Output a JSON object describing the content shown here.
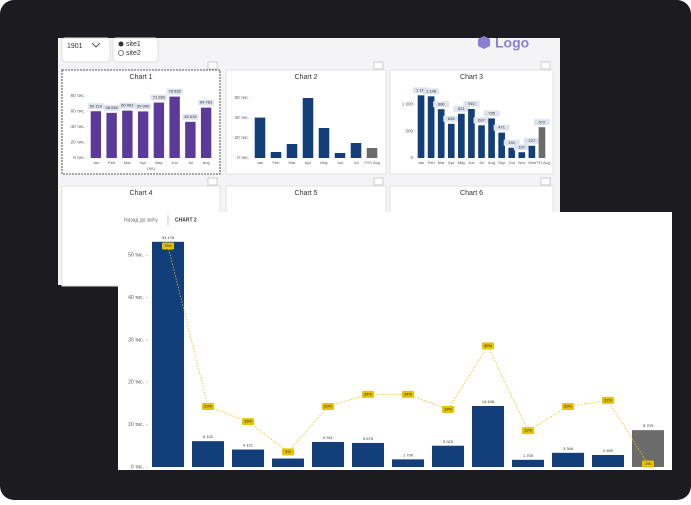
{
  "filters": {
    "year": "1901",
    "options": [
      "site1",
      "site2"
    ]
  },
  "logo": "Logo",
  "cards": [
    {
      "type": "bar",
      "title": "Chart 1",
      "group": "1901",
      "color": "#5b3a9a",
      "categories": [
        "Jan",
        "Feb",
        "Mar",
        "Apr",
        "May",
        "Jun",
        "Jul",
        "Aug"
      ],
      "values": [
        60119,
        58048,
        60902,
        59900,
        71282,
        78935,
        46519,
        64781
      ],
      "value_labels": [
        "60 119",
        "58 048",
        "60 902",
        "59 900",
        "71 282",
        "78 935",
        "46 519",
        "64 781"
      ],
      "ylim": [
        0,
        90000
      ],
      "yticks": [
        {
          "value": 0,
          "label": "0 тис."
        },
        {
          "value": 20000,
          "label": "20 тис."
        },
        {
          "value": 40000,
          "label": "40 тис."
        },
        {
          "value": 60000,
          "label": "60 тис."
        },
        {
          "value": 80000,
          "label": "80 тис."
        }
      ]
    },
    {
      "type": "bar",
      "title": "Chart 2",
      "color": "#123e7a",
      "avg_color": "#6b6b6b",
      "categories": [
        "Jan",
        "Feb",
        "Mar",
        "Apr",
        "May",
        "Jun",
        "Jul",
        "YTD Avg"
      ],
      "values": [
        40429,
        6000,
        14000,
        60000,
        30000,
        5000,
        15000,
        10000
      ],
      "ylim": [
        0,
        70000
      ],
      "yticks": [
        {
          "value": 0,
          "label": "0 тис."
        },
        {
          "value": 20000,
          "label": "20 тис."
        },
        {
          "value": 40000,
          "label": "40 тис."
        },
        {
          "value": 60000,
          "label": "60 тис."
        }
      ]
    },
    {
      "type": "bar",
      "title": "Chart 3",
      "color": "#123e7a",
      "avg_color": "#6b6b6b",
      "categories": [
        "Jan",
        "Feb",
        "Mar",
        "Apr",
        "May",
        "Jun",
        "Jul",
        "Aug",
        "Sep",
        "Oct",
        "Nov",
        "Dec",
        "YTD Avg"
      ],
      "values": [
        1164,
        1146,
        906,
        635,
        821,
        910,
        607,
        735,
        471,
        191,
        107,
        227,
        572
      ],
      "value_labels": [
        "1 164",
        "1 146",
        "906",
        "635",
        "821",
        "910",
        "607",
        "735",
        "471",
        "191",
        "107",
        "227",
        "572"
      ],
      "ylim": [
        0,
        1300
      ],
      "yticks": [
        0,
        500,
        {
          "value": 1000,
          "label": "1 000"
        }
      ]
    },
    {
      "type": "none",
      "title": "Chart 4"
    },
    {
      "type": "none",
      "title": "Chart 5"
    },
    {
      "type": "none",
      "title": "Chart 6"
    }
  ],
  "focus": {
    "back": "Назад до звіту",
    "title": "CHART 2",
    "type": "bar",
    "color": "#123e7a",
    "avg_color": "#6b6b6b",
    "line_color": "#e6c300",
    "values": [
      53178,
      6102,
      4121,
      2000,
      5911,
      5675,
      1799,
      5023,
      14408,
      1700,
      3346,
      2839,
      8703
    ],
    "value_labels": [
      "53 178",
      "6 102",
      "4 121",
      "2 000",
      "5 911",
      "5 675",
      "1 799",
      "5 023",
      "14 408",
      "1 700",
      "3 346",
      "2 839",
      "8 703"
    ],
    "share": [
      73,
      20,
      15,
      5,
      20,
      24,
      24,
      19,
      40,
      12,
      20,
      22,
      1
    ],
    "share_labels": [
      "73%",
      "20%",
      "15%",
      "5%",
      "20%",
      "24%",
      "24%",
      "19%",
      "40%",
      "12%",
      "20%",
      "22%",
      "1%"
    ],
    "ylim": [
      0,
      53600
    ],
    "yticks": [
      {
        "value": 0,
        "label": "0 тис."
      },
      {
        "value": 10000,
        "label": "10 тис."
      },
      {
        "value": 20000,
        "label": "20 тис."
      },
      {
        "value": 30000,
        "label": "30 тис."
      },
      {
        "value": 40000,
        "label": "40 тис."
      },
      {
        "value": 50000,
        "label": "50 тис."
      }
    ],
    "y2lim": [
      0,
      75
    ]
  }
}
